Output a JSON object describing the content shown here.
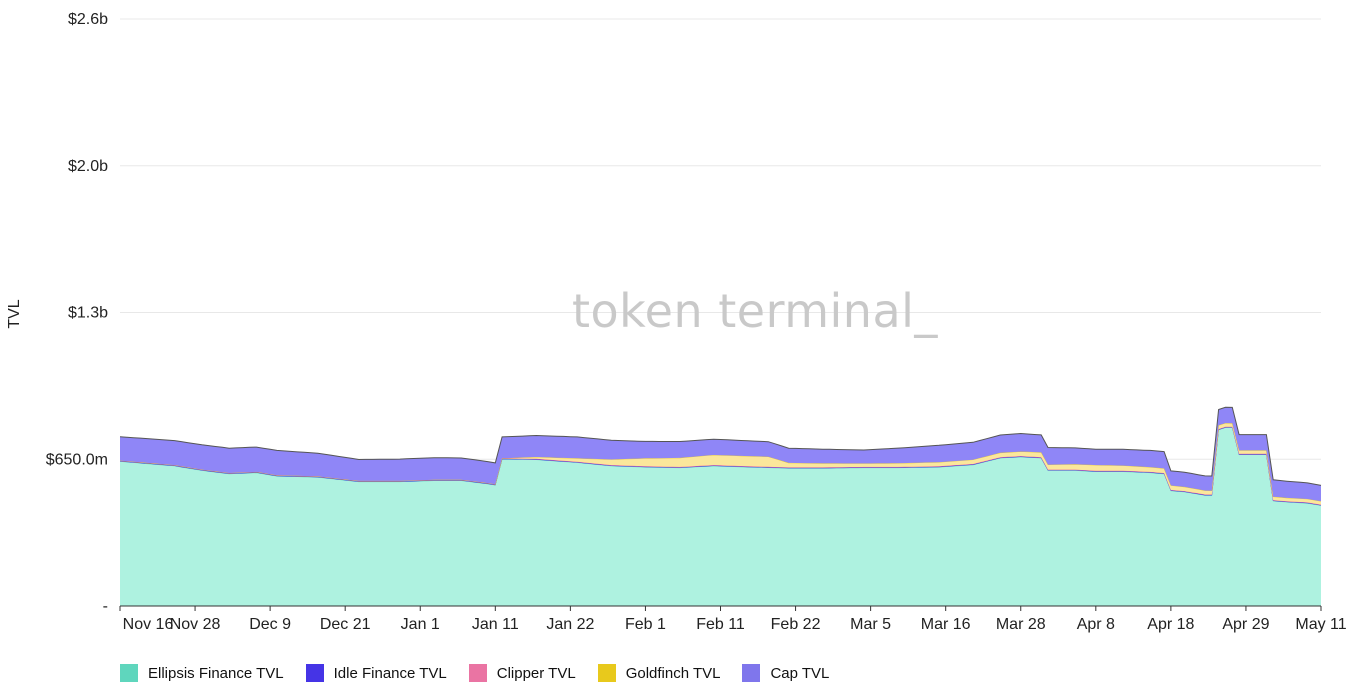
{
  "watermark": "token terminal_",
  "chart_data": {
    "type": "area",
    "stacked": true,
    "ylabel": "TVL",
    "yticks": [
      {
        "value": 0,
        "label": "-"
      },
      {
        "value": 650000000,
        "label": "$650.0m"
      },
      {
        "value": 1300000000,
        "label": "$1.3b"
      },
      {
        "value": 1950000000,
        "label": "$2.0b"
      },
      {
        "value": 2600000000,
        "label": "$2.6b"
      }
    ],
    "ylim": [
      0,
      2600000000
    ],
    "x_start": "2021-11-16",
    "x_end": "2022-05-11",
    "xticks": [
      "Nov 16",
      "Nov 28",
      "Dec 9",
      "Dec 21",
      "Jan 1",
      "Jan 11",
      "Jan 22",
      "Feb 1",
      "Feb 11",
      "Feb 22",
      "Mar 5",
      "Mar 16",
      "Mar 28",
      "Apr 8",
      "Apr 18",
      "Apr 29",
      "May 11"
    ],
    "grid": true,
    "legend_position": "bottom-left",
    "series": [
      {
        "name": "Ellipsis Finance TVL",
        "color": "#aef2e0",
        "legend_color": "#5fd6bd",
        "points": [
          [
            "2021-11-16",
            640
          ],
          [
            "2021-11-20",
            630
          ],
          [
            "2021-11-24",
            620
          ],
          [
            "2021-11-28",
            600
          ],
          [
            "2021-12-02",
            585
          ],
          [
            "2021-12-06",
            590
          ],
          [
            "2021-12-09",
            575
          ],
          [
            "2021-12-15",
            570
          ],
          [
            "2021-12-21",
            550
          ],
          [
            "2021-12-27",
            550
          ],
          [
            "2022-01-01",
            555
          ],
          [
            "2022-01-05",
            555
          ],
          [
            "2022-01-09",
            540
          ],
          [
            "2022-01-10",
            535
          ],
          [
            "2022-01-11",
            650
          ],
          [
            "2022-01-16",
            648
          ],
          [
            "2022-01-22",
            635
          ],
          [
            "2022-01-27",
            620
          ],
          [
            "2022-02-01",
            615
          ],
          [
            "2022-02-06",
            612
          ],
          [
            "2022-02-11",
            620
          ],
          [
            "2022-02-16",
            615
          ],
          [
            "2022-02-22",
            610
          ],
          [
            "2022-02-27",
            610
          ],
          [
            "2022-03-05",
            612
          ],
          [
            "2022-03-10",
            612
          ],
          [
            "2022-03-16",
            615
          ],
          [
            "2022-03-21",
            625
          ],
          [
            "2022-03-25",
            655
          ],
          [
            "2022-03-28",
            660
          ],
          [
            "2022-03-31",
            655
          ],
          [
            "2022-04-01",
            600
          ],
          [
            "2022-04-05",
            600
          ],
          [
            "2022-04-08",
            595
          ],
          [
            "2022-04-12",
            595
          ],
          [
            "2022-04-16",
            590
          ],
          [
            "2022-04-18",
            585
          ],
          [
            "2022-04-19",
            510
          ],
          [
            "2022-04-21",
            505
          ],
          [
            "2022-04-24",
            490
          ],
          [
            "2022-04-25",
            490
          ],
          [
            "2022-04-26",
            780
          ],
          [
            "2022-04-27",
            790
          ],
          [
            "2022-04-28",
            790
          ],
          [
            "2022-04-29",
            670
          ],
          [
            "2022-05-02",
            670
          ],
          [
            "2022-05-03",
            670
          ],
          [
            "2022-05-04",
            465
          ],
          [
            "2022-05-06",
            460
          ],
          [
            "2022-05-09",
            455
          ],
          [
            "2022-05-11",
            445
          ]
        ]
      },
      {
        "name": "Idle Finance TVL",
        "color": "#4534e6",
        "legend_color": "#4534e6",
        "points": [
          [
            "2021-11-16",
            2
          ],
          [
            "2022-05-11",
            2
          ]
        ]
      },
      {
        "name": "Clipper TVL",
        "color": "#ea74a3",
        "legend_color": "#ea74a3",
        "points": [
          [
            "2021-11-16",
            2
          ],
          [
            "2022-05-11",
            2
          ]
        ]
      },
      {
        "name": "Goldfinch TVL",
        "color": "#fbe79b",
        "legend_color": "#e8c91c",
        "points": [
          [
            "2021-11-16",
            0
          ],
          [
            "2022-01-11",
            0
          ],
          [
            "2022-01-16",
            8
          ],
          [
            "2022-01-22",
            15
          ],
          [
            "2022-02-01",
            35
          ],
          [
            "2022-02-11",
            45
          ],
          [
            "2022-02-19",
            45
          ],
          [
            "2022-02-22",
            20
          ],
          [
            "2022-03-05",
            15
          ],
          [
            "2022-03-16",
            18
          ],
          [
            "2022-03-28",
            20
          ],
          [
            "2022-04-08",
            25
          ],
          [
            "2022-04-18",
            20
          ],
          [
            "2022-04-29",
            15
          ],
          [
            "2022-05-11",
            15
          ]
        ]
      },
      {
        "name": "Cap TVL",
        "color": "#8f86f7",
        "legend_color": "#7f76ec",
        "points": [
          [
            "2021-11-16",
            106
          ],
          [
            "2021-11-28",
            110
          ],
          [
            "2021-12-09",
            110
          ],
          [
            "2021-12-21",
            95
          ],
          [
            "2022-01-01",
            98
          ],
          [
            "2022-01-10",
            95
          ],
          [
            "2022-01-11",
            95
          ],
          [
            "2022-01-22",
            95
          ],
          [
            "2022-02-01",
            75
          ],
          [
            "2022-02-11",
            70
          ],
          [
            "2022-02-22",
            65
          ],
          [
            "2022-03-05",
            60
          ],
          [
            "2022-03-16",
            75
          ],
          [
            "2022-03-28",
            80
          ],
          [
            "2022-04-08",
            70
          ],
          [
            "2022-04-18",
            75
          ],
          [
            "2022-04-19",
            65
          ],
          [
            "2022-04-25",
            65
          ],
          [
            "2022-04-26",
            70
          ],
          [
            "2022-04-29",
            70
          ],
          [
            "2022-05-03",
            70
          ],
          [
            "2022-05-04",
            75
          ],
          [
            "2022-05-11",
            70
          ]
        ]
      }
    ]
  }
}
